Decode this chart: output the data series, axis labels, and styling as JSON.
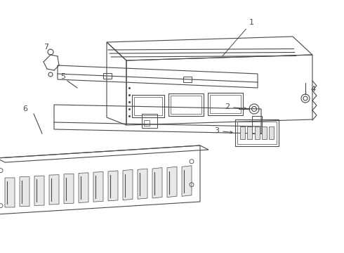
{
  "bg_color": "#ffffff",
  "line_color": "#4a4a4a",
  "fig_width": 4.9,
  "fig_height": 3.6,
  "dpi": 100
}
